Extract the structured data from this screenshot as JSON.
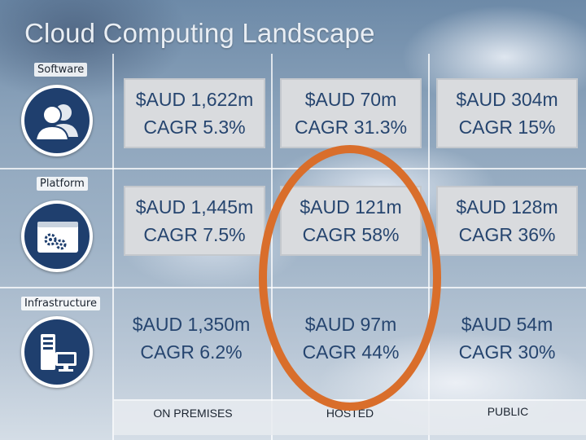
{
  "slide": {
    "title": "Cloud Computing Landscape",
    "rows": [
      {
        "label": "Software",
        "icon": "users-icon"
      },
      {
        "label": "Platform",
        "icon": "platform-window-gears-icon"
      },
      {
        "label": "Infrastructure",
        "icon": "server-monitor-icon"
      }
    ],
    "columns": [
      "ON PREMISES",
      "HOSTED",
      "PUBLIC"
    ],
    "cells": [
      [
        {
          "value": "$AUD 1,622m",
          "cagr": "CAGR 5.3%"
        },
        {
          "value": "$AUD 70m",
          "cagr": "CAGR 31.3%"
        },
        {
          "value": "$AUD 304m",
          "cagr": "CAGR 15%"
        }
      ],
      [
        {
          "value": "$AUD 1,445m",
          "cagr": "CAGR 7.5%"
        },
        {
          "value": "$AUD 121m",
          "cagr": "CAGR 58%"
        },
        {
          "value": "$AUD 128m",
          "cagr": "CAGR 36%"
        }
      ],
      [
        {
          "value": "$AUD 1,350m",
          "cagr": "CAGR 6.2%"
        },
        {
          "value": "$AUD 97m",
          "cagr": "CAGR 44%"
        },
        {
          "value": "$AUD 54m",
          "cagr": "CAGR 30%"
        }
      ]
    ],
    "colors": {
      "value_text": "#26456f",
      "icon_circle": "#1f3f6e",
      "highlight": "#d96e2b"
    }
  }
}
